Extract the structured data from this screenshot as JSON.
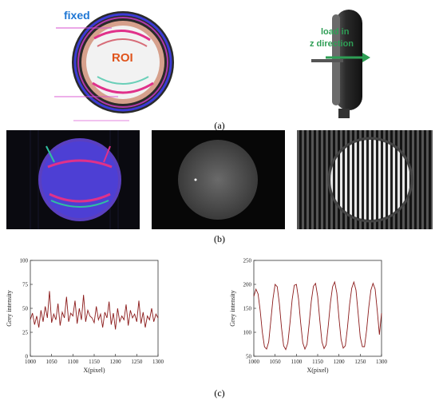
{
  "panel_a": {
    "label": "(a)",
    "fixed_text": "fixed",
    "roi_text": "ROI",
    "load_text_line1": "load in",
    "load_text_line2": "z direction"
  },
  "panel_b": {
    "label": "(b)"
  },
  "panel_c": {
    "label": "(c)"
  },
  "colors": {
    "line": "#8b1a1a",
    "fixed": "#1f77d4",
    "roi": "#e0541c",
    "load": "#2e9e55"
  },
  "chart_data": [
    {
      "type": "line",
      "xlabel": "X(pixel)",
      "ylabel": "Grey intensity",
      "xlim": [
        1000,
        1300
      ],
      "ylim": [
        0,
        100
      ],
      "xticks": [
        1000,
        1050,
        1100,
        1150,
        1200,
        1250,
        1300
      ],
      "yticks": [
        0,
        25,
        50,
        75,
        100
      ],
      "series": [
        {
          "x": [
            1000,
            1005,
            1010,
            1015,
            1020,
            1025,
            1030,
            1035,
            1040,
            1045,
            1050,
            1055,
            1060,
            1065,
            1070,
            1075,
            1080,
            1085,
            1090,
            1095,
            1100,
            1105,
            1110,
            1115,
            1120,
            1125,
            1130,
            1135,
            1140,
            1145,
            1150,
            1155,
            1160,
            1165,
            1170,
            1175,
            1180,
            1185,
            1190,
            1195,
            1200,
            1205,
            1210,
            1215,
            1220,
            1225,
            1230,
            1235,
            1240,
            1245,
            1250,
            1255,
            1260,
            1265,
            1270,
            1275,
            1280,
            1285,
            1290,
            1295,
            1300
          ],
          "y": [
            38,
            45,
            33,
            42,
            30,
            48,
            36,
            52,
            40,
            68,
            35,
            44,
            38,
            55,
            32,
            46,
            40,
            62,
            36,
            45,
            42,
            58,
            34,
            50,
            38,
            64,
            36,
            48,
            42,
            40,
            35,
            52,
            38,
            44,
            30,
            46,
            40,
            57,
            33,
            45,
            28,
            50,
            36,
            42,
            38,
            54,
            32,
            48,
            40,
            44,
            36,
            58,
            34,
            46,
            30,
            42,
            38,
            50,
            36,
            44,
            40
          ]
        }
      ]
    },
    {
      "type": "line",
      "xlabel": "X(pixel)",
      "ylabel": "Grey intensity",
      "xlim": [
        1000,
        1300
      ],
      "ylim": [
        50,
        250
      ],
      "xticks": [
        1000,
        1050,
        1100,
        1150,
        1200,
        1250,
        1300
      ],
      "yticks": [
        50,
        100,
        150,
        200,
        250
      ],
      "series": [
        {
          "x": [
            1000,
            1005,
            1010,
            1015,
            1020,
            1025,
            1030,
            1035,
            1040,
            1045,
            1050,
            1055,
            1060,
            1065,
            1070,
            1075,
            1080,
            1085,
            1090,
            1095,
            1100,
            1105,
            1110,
            1115,
            1120,
            1125,
            1130,
            1135,
            1140,
            1145,
            1150,
            1155,
            1160,
            1165,
            1170,
            1175,
            1180,
            1185,
            1190,
            1195,
            1200,
            1205,
            1210,
            1215,
            1220,
            1225,
            1230,
            1235,
            1240,
            1245,
            1250,
            1255,
            1260,
            1265,
            1270,
            1275,
            1280,
            1285,
            1290,
            1295,
            1300
          ],
          "y": [
            175,
            190,
            180,
            145,
            100,
            70,
            65,
            80,
            125,
            170,
            200,
            195,
            160,
            110,
            72,
            64,
            78,
            120,
            168,
            198,
            200,
            170,
            120,
            78,
            65,
            75,
            118,
            165,
            196,
            202,
            175,
            125,
            80,
            66,
            74,
            115,
            162,
            195,
            205,
            182,
            130,
            85,
            67,
            72,
            110,
            158,
            192,
            205,
            188,
            140,
            90,
            70,
            70,
            105,
            152,
            188,
            202,
            190,
            145,
            95,
            140
          ]
        }
      ]
    }
  ]
}
